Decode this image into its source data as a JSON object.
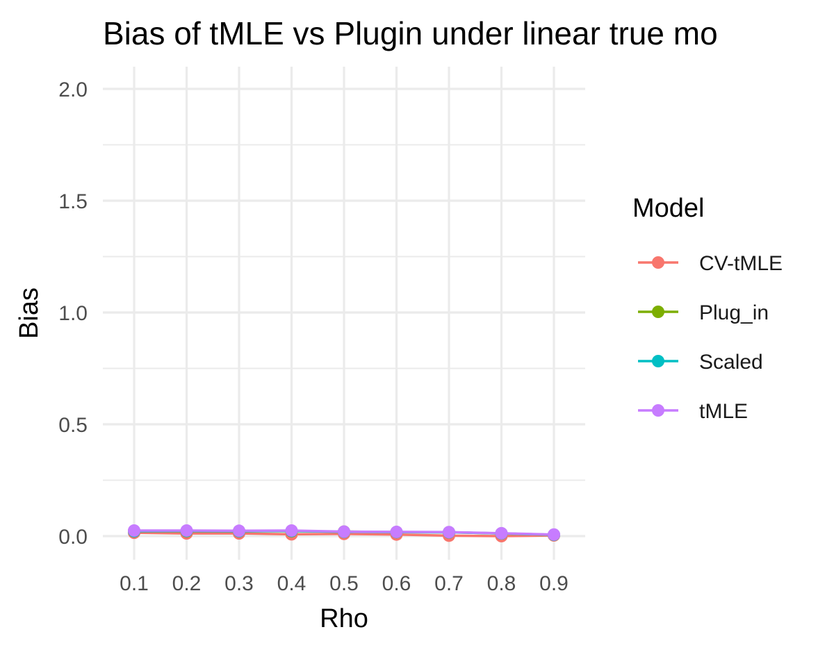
{
  "chart_data": {
    "type": "line",
    "title": "Bias of tMLE vs Plugin under linear true mo",
    "xlabel": "Rho",
    "ylabel": "Bias",
    "x": [
      0.1,
      0.2,
      0.3,
      0.4,
      0.5,
      0.6,
      0.7,
      0.8,
      0.9
    ],
    "x_tick_labels": [
      "0.1",
      "0.2",
      "0.3",
      "0.4",
      "0.5",
      "0.6",
      "0.7",
      "0.8",
      "0.9"
    ],
    "y_ticks": [
      0.0,
      0.5,
      1.0,
      1.5,
      2.0
    ],
    "y_tick_labels": [
      "0.0",
      "0.5",
      "1.0",
      "1.5",
      "2.0"
    ],
    "ylim": [
      -0.09,
      2.09
    ],
    "grid": true,
    "legend": {
      "title": "Model",
      "position": "right"
    },
    "series": [
      {
        "name": "CV-tMLE",
        "color": "#F8766D",
        "values": [
          0.015,
          0.012,
          0.012,
          0.008,
          0.01,
          0.007,
          0.002,
          0.0,
          0.003
        ]
      },
      {
        "name": "Plug_in",
        "color": "#7CAE00",
        "values": [
          0.022,
          0.022,
          0.022,
          0.022,
          0.02,
          0.018,
          0.017,
          0.012,
          0.006
        ]
      },
      {
        "name": "Scaled",
        "color": "#00BFC4",
        "values": [
          0.022,
          0.023,
          0.022,
          0.023,
          0.019,
          0.018,
          0.017,
          0.012,
          0.006
        ]
      },
      {
        "name": "tMLE",
        "color": "#C77CFF",
        "values": [
          0.025,
          0.025,
          0.024,
          0.025,
          0.02,
          0.019,
          0.018,
          0.013,
          0.007
        ]
      }
    ]
  }
}
